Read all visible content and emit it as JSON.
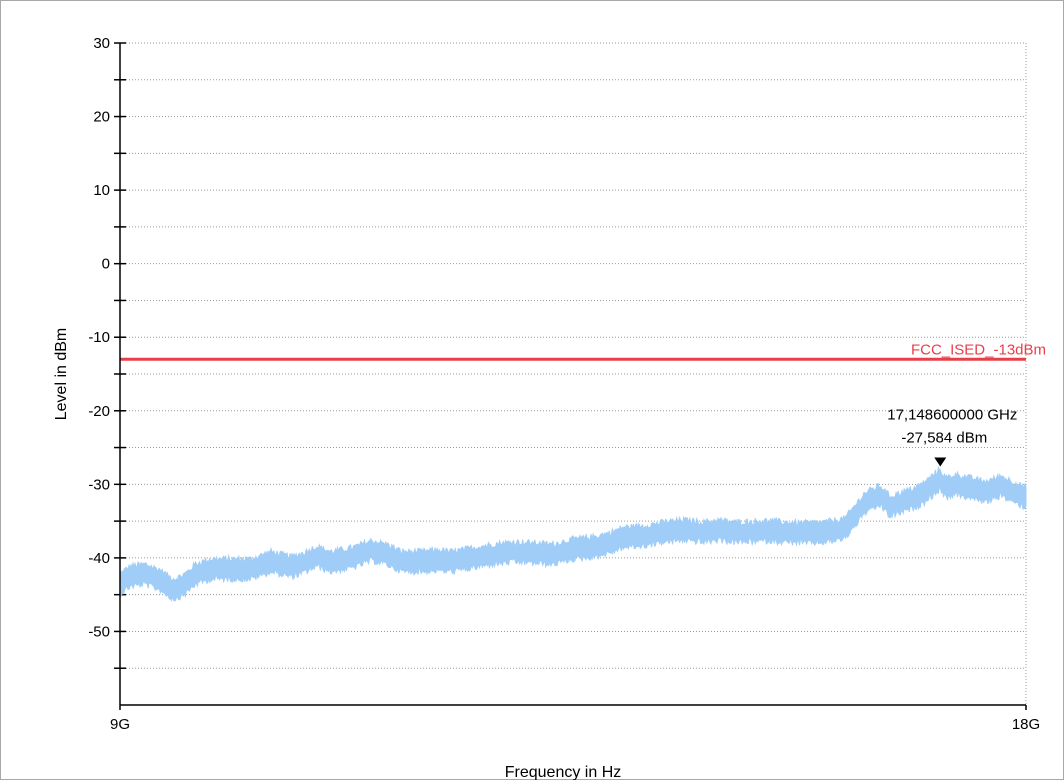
{
  "chart_data": {
    "type": "line",
    "xlabel": "Frequency in Hz",
    "ylabel": "Level in dBm",
    "xlim": [
      9000000000,
      18000000000
    ],
    "ylim": [
      -60,
      30
    ],
    "x_tick_labels": [
      {
        "value": 9000000000,
        "label": "9G"
      },
      {
        "value": 18000000000,
        "label": "18G"
      }
    ],
    "y_ticks": [
      30,
      20,
      10,
      0,
      -10,
      -20,
      -30,
      -40,
      -50
    ],
    "y_minor_ticks": [
      25,
      15,
      5,
      -5,
      -15,
      -25,
      -35,
      -45,
      -55
    ],
    "grid": true,
    "series": [
      {
        "type": "trace",
        "color": "#9fcdf7",
        "x": [
          9000000000,
          9100000000,
          9250000000,
          9400000000,
          9500000000,
          9550000000,
          9650000000,
          9750000000,
          9900000000,
          10100000000,
          10300000000,
          10500000000,
          10700000000,
          10800000000,
          10950000000,
          11100000000,
          11300000000,
          11500000000,
          11650000000,
          11800000000,
          12000000000,
          12150000000,
          12300000000,
          12500000000,
          12700000000,
          12900000000,
          13100000000,
          13300000000,
          13500000000,
          13700000000,
          13850000000,
          14000000000,
          14200000000,
          14400000000,
          14600000000,
          14800000000,
          14950000000,
          15100000000,
          15300000000,
          15450000000,
          15600000000,
          15800000000,
          16000000000,
          16200000000,
          16400000000,
          16550000000,
          16650000000,
          16750000000,
          16900000000,
          17000000000,
          17100000000,
          17148600000,
          17200000000,
          17300000000,
          17450000000,
          17600000000,
          17750000000,
          17900000000,
          18000000000
        ],
        "y": [
          -43.5,
          -42.5,
          -42.2,
          -43.0,
          -44.0,
          -44.2,
          -43.5,
          -42.2,
          -41.5,
          -41.5,
          -41.5,
          -40.5,
          -41.2,
          -40.8,
          -39.8,
          -40.5,
          -40.0,
          -39.0,
          -39.5,
          -40.5,
          -40.5,
          -40.3,
          -40.5,
          -40.0,
          -39.5,
          -39.2,
          -39.3,
          -39.5,
          -38.8,
          -38.5,
          -38.0,
          -37.2,
          -37.0,
          -36.5,
          -36.2,
          -36.5,
          -36.2,
          -36.5,
          -36.4,
          -36.3,
          -36.5,
          -36.6,
          -36.5,
          -36.0,
          -32.5,
          -31.5,
          -33.0,
          -32.5,
          -31.8,
          -31.0,
          -29.8,
          -29.3,
          -30.5,
          -30.0,
          -30.5,
          -31.0,
          -30.2,
          -31.2,
          -31.8
        ]
      },
      {
        "type": "limit",
        "name": "FCC_ISED_-13dBm",
        "color": "#e8404a",
        "value": -13
      }
    ],
    "marker": {
      "x": 17148600000,
      "y": -27.584,
      "freq_label": "17,148600000 GHz",
      "level_label": "-27,584 dBm"
    }
  }
}
